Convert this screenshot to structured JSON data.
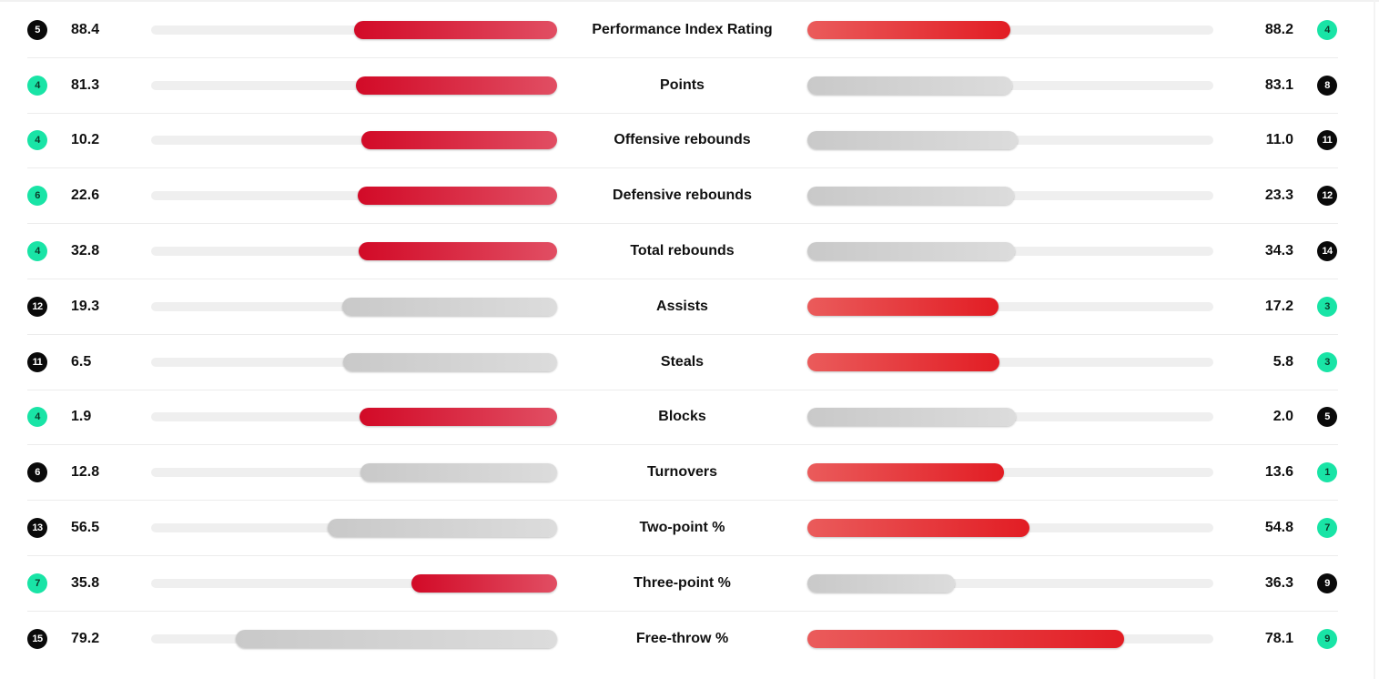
{
  "colors": {
    "leader_badge": "#19e4a6",
    "other_badge": "#0a0a0a",
    "leader_bar_left": "#d20a27",
    "leader_bar_right": "#e21d24",
    "neutral_bar": "#d0d0d0",
    "track": "#efefef"
  },
  "stats": [
    {
      "label": "Performance Index Rating",
      "left": {
        "value": "88.4",
        "rank": "5",
        "badge": "black",
        "bar": "red",
        "fill": 0.5
      },
      "right": {
        "value": "88.2",
        "rank": "4",
        "badge": "green",
        "bar": "red",
        "fill": 0.5
      }
    },
    {
      "label": "Points",
      "left": {
        "value": "81.3",
        "rank": "4",
        "badge": "green",
        "bar": "red",
        "fill": 0.495
      },
      "right": {
        "value": "83.1",
        "rank": "8",
        "badge": "black",
        "bar": "gray",
        "fill": 0.505
      }
    },
    {
      "label": "Offensive rebounds",
      "left": {
        "value": "10.2",
        "rank": "4",
        "badge": "green",
        "bar": "red",
        "fill": 0.481
      },
      "right": {
        "value": "11.0",
        "rank": "11",
        "badge": "black",
        "bar": "gray",
        "fill": 0.519
      }
    },
    {
      "label": "Defensive rebounds",
      "left": {
        "value": "22.6",
        "rank": "6",
        "badge": "green",
        "bar": "red",
        "fill": 0.492
      },
      "right": {
        "value": "23.3",
        "rank": "12",
        "badge": "black",
        "bar": "gray",
        "fill": 0.508
      }
    },
    {
      "label": "Total rebounds",
      "left": {
        "value": "32.8",
        "rank": "4",
        "badge": "green",
        "bar": "red",
        "fill": 0.489
      },
      "right": {
        "value": "34.3",
        "rank": "14",
        "badge": "black",
        "bar": "gray",
        "fill": 0.511
      }
    },
    {
      "label": "Assists",
      "left": {
        "value": "19.3",
        "rank": "12",
        "badge": "black",
        "bar": "gray",
        "fill": 0.529
      },
      "right": {
        "value": "17.2",
        "rank": "3",
        "badge": "green",
        "bar": "red",
        "fill": 0.471
      }
    },
    {
      "label": "Steals",
      "left": {
        "value": "6.5",
        "rank": "11",
        "badge": "black",
        "bar": "gray",
        "fill": 0.528
      },
      "right": {
        "value": "5.8",
        "rank": "3",
        "badge": "green",
        "bar": "red",
        "fill": 0.472
      }
    },
    {
      "label": "Blocks",
      "left": {
        "value": "1.9",
        "rank": "4",
        "badge": "green",
        "bar": "red",
        "fill": 0.487
      },
      "right": {
        "value": "2.0",
        "rank": "5",
        "badge": "black",
        "bar": "gray",
        "fill": 0.513
      }
    },
    {
      "label": "Turnovers",
      "left": {
        "value": "12.8",
        "rank": "6",
        "badge": "black",
        "bar": "gray",
        "fill": 0.485
      },
      "right": {
        "value": "13.6",
        "rank": "1",
        "badge": "green",
        "bar": "red",
        "fill": 0.485
      }
    },
    {
      "label": "Two-point %",
      "left": {
        "value": "56.5",
        "rank": "13",
        "badge": "black",
        "bar": "gray",
        "fill": 0.565
      },
      "right": {
        "value": "54.8",
        "rank": "7",
        "badge": "green",
        "bar": "red",
        "fill": 0.548
      }
    },
    {
      "label": "Three-point %",
      "left": {
        "value": "35.8",
        "rank": "7",
        "badge": "green",
        "bar": "red",
        "fill": 0.358
      },
      "right": {
        "value": "36.3",
        "rank": "9",
        "badge": "black",
        "bar": "gray",
        "fill": 0.363
      }
    },
    {
      "label": "Free-throw %",
      "left": {
        "value": "79.2",
        "rank": "15",
        "badge": "black",
        "bar": "gray",
        "fill": 0.792
      },
      "right": {
        "value": "78.1",
        "rank": "9",
        "badge": "green",
        "bar": "red",
        "fill": 0.781
      }
    }
  ]
}
